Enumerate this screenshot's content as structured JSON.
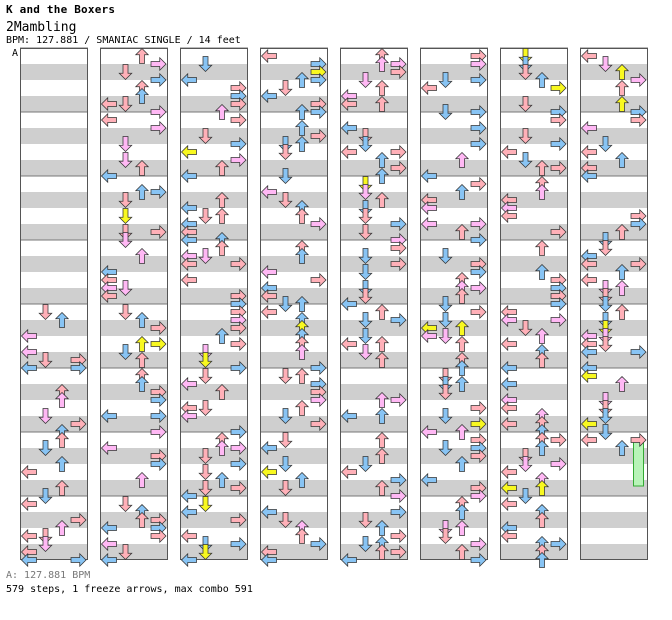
{
  "header": {
    "artist": "K and the Boxers",
    "song": "2Mambling",
    "info": "BPM: 127.881 / SMANIAC SINGLE / 14 feet",
    "segment_marker": "A"
  },
  "footer": {
    "bpm_line": "A: 127.881 BPM",
    "stats": "579 steps, 1 freeze arrows, max combo 591"
  },
  "colors": {
    "quarter": "#ffb0b8",
    "eighth": "#88c4f4",
    "sixteenth": "#ffb8f4",
    "third": "#f8f820",
    "freeze": "#b8f4b8",
    "band": "#cfcfcf",
    "column_border": "#555555"
  },
  "chart_data": {
    "type": "table",
    "title": "2Mambling",
    "description_fields": [
      "arrow_type_by_color",
      "directions_left_down_up_right"
    ],
    "columns": 8,
    "measures_per_column": 8,
    "steps": 579,
    "freeze_arrows": 1,
    "max_combo": 591,
    "bpm": 127.881,
    "difficulty": "SMANIAC SINGLE",
    "feet": 14,
    "empty_measures_start": 4,
    "freeze_location": {
      "column": 8,
      "lane": "right",
      "measure": 7
    }
  }
}
